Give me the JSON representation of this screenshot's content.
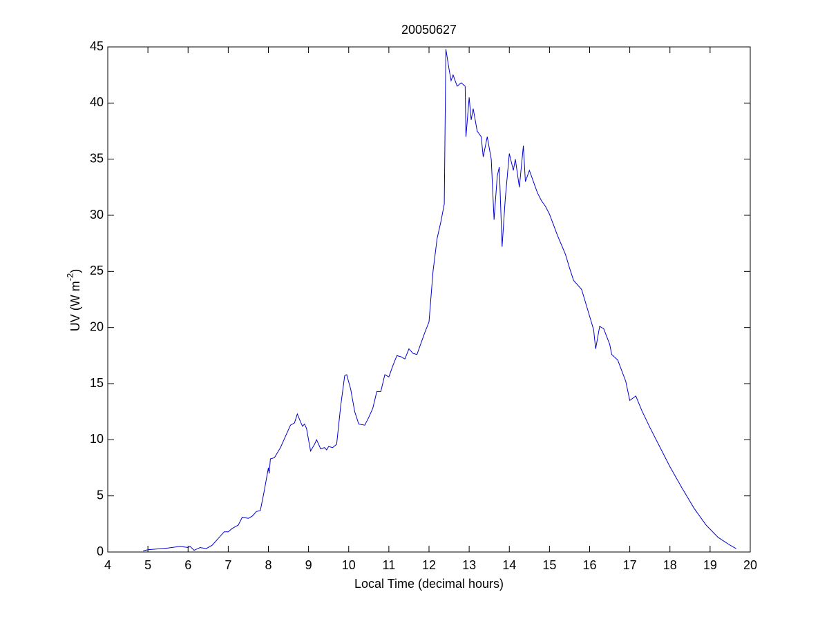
{
  "chart_data": {
    "type": "line",
    "title": "20050627",
    "xlabel": "Local Time (decimal hours)",
    "ylabel": {
      "base": "UV (W m",
      "sup": "-2",
      "end": ")"
    },
    "x": [
      4.88,
      5.0,
      5.5,
      5.8,
      6.0,
      6.05,
      6.15,
      6.3,
      6.45,
      6.6,
      6.8,
      6.9,
      7.0,
      7.1,
      7.25,
      7.35,
      7.5,
      7.6,
      7.7,
      7.8,
      7.9,
      8.0,
      8.02,
      8.05,
      8.15,
      8.3,
      8.45,
      8.55,
      8.65,
      8.72,
      8.8,
      8.85,
      8.9,
      8.95,
      9.05,
      9.15,
      9.2,
      9.3,
      9.4,
      9.45,
      9.5,
      9.6,
      9.7,
      9.8,
      9.9,
      9.95,
      10.05,
      10.15,
      10.25,
      10.4,
      10.5,
      10.6,
      10.7,
      10.8,
      10.9,
      11.0,
      11.1,
      11.2,
      11.3,
      11.4,
      11.5,
      11.6,
      11.7,
      11.8,
      11.9,
      12.0,
      12.1,
      12.2,
      12.3,
      12.38,
      12.42,
      12.5,
      12.55,
      12.6,
      12.7,
      12.8,
      12.9,
      12.92,
      13.0,
      13.05,
      13.1,
      13.2,
      13.3,
      13.35,
      13.45,
      13.55,
      13.62,
      13.7,
      13.75,
      13.82,
      13.9,
      14.0,
      14.1,
      14.15,
      14.25,
      14.35,
      14.4,
      14.5,
      14.6,
      14.7,
      14.8,
      14.9,
      15.0,
      15.2,
      15.4,
      15.5,
      15.6,
      15.8,
      16.0,
      16.1,
      16.15,
      16.25,
      16.35,
      16.5,
      16.55,
      16.7,
      16.9,
      17.0,
      17.15,
      17.3,
      17.5,
      17.8,
      18.0,
      18.3,
      18.6,
      18.9,
      19.2,
      19.5,
      19.65
    ],
    "series": [
      {
        "color": "#0000cc",
        "values": [
          0.1,
          0.2,
          0.35,
          0.5,
          0.4,
          0.5,
          0.15,
          0.4,
          0.3,
          0.6,
          1.4,
          1.8,
          1.8,
          2.1,
          2.4,
          3.1,
          3.0,
          3.2,
          3.6,
          3.7,
          5.5,
          7.5,
          7.0,
          8.3,
          8.4,
          9.3,
          10.5,
          11.3,
          11.5,
          12.3,
          11.6,
          11.2,
          11.4,
          11.0,
          9.0,
          9.6,
          10.0,
          9.2,
          9.3,
          9.1,
          9.4,
          9.3,
          9.6,
          13,
          15.7,
          15.8,
          14.5,
          12.5,
          11.4,
          11.3,
          12.0,
          12.8,
          14.3,
          14.3,
          15.8,
          15.6,
          16.6,
          17.5,
          17.4,
          17.2,
          18.1,
          17.7,
          17.6,
          18.6,
          19.6,
          20.5,
          25,
          27.9,
          29.5,
          31,
          44.8,
          43,
          42,
          42.5,
          41.5,
          41.8,
          41.5,
          37,
          40.5,
          38.5,
          39.5,
          37.5,
          37.0,
          35.2,
          37,
          35,
          29.6,
          33.5,
          34.3,
          27.2,
          31.5,
          35.5,
          34,
          35,
          32.5,
          36.2,
          33,
          34,
          33,
          32,
          31.3,
          30.8,
          30.1,
          28.2,
          26.5,
          25.3,
          24.2,
          23.4,
          21,
          19.8,
          18.1,
          20.1,
          19.9,
          18.5,
          17.6,
          17.1,
          15.2,
          13.5,
          13.9,
          12.6,
          11.1,
          9.0,
          7.6,
          5.7,
          3.9,
          2.4,
          1.3,
          0.6,
          0.3
        ]
      }
    ],
    "xlim": [
      4,
      20
    ],
    "xticks": [
      4,
      5,
      6,
      7,
      8,
      9,
      10,
      11,
      12,
      13,
      14,
      15,
      16,
      17,
      18,
      19,
      20
    ],
    "ylim": [
      0,
      45
    ],
    "yticks": [
      0,
      5,
      10,
      15,
      20,
      25,
      30,
      35,
      40,
      45
    ]
  }
}
